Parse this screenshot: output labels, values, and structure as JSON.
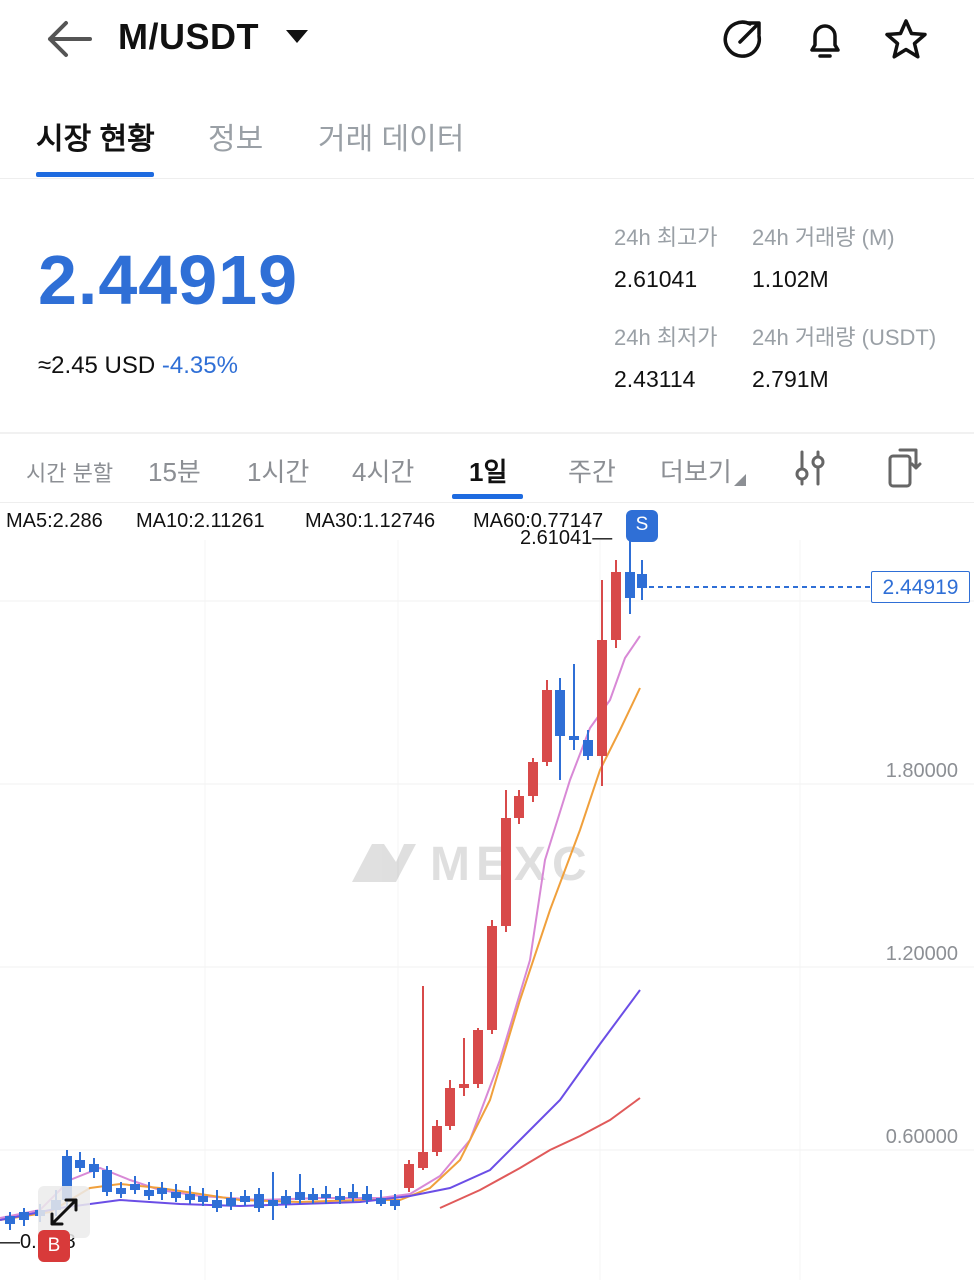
{
  "header": {
    "pair": "M/USDT",
    "icons": [
      "back-arrow-icon",
      "caret-down-icon",
      "share-icon",
      "bell-icon",
      "star-icon"
    ]
  },
  "tabs": [
    {
      "label": "시장 현황",
      "active": true
    },
    {
      "label": "정보",
      "active": false
    },
    {
      "label": "거래 데이터",
      "active": false
    }
  ],
  "ticker": {
    "price": "2.44919",
    "usd_approx": "≈2.45 USD",
    "change": "-4.35%",
    "high_label": "24h 최고가",
    "high_value": "2.61041",
    "vol_m_label": "24h 거래량 (M)",
    "vol_m_value": "1.102M",
    "low_label": "24h 최저가",
    "low_value": "2.43114",
    "vol_usdt_label": "24h 거래량 (USDT)",
    "vol_usdt_value": "2.791M"
  },
  "timeframes": {
    "items": [
      "시간 분할",
      "15분",
      "1시간",
      "4시간",
      "1일",
      "주간",
      "더보기"
    ],
    "active": "1일",
    "icons": [
      "indicator-settings-icon",
      "screen-rotate-icon"
    ]
  },
  "ma_legend": [
    {
      "label": "MA5:2.286",
      "color": "#d889d6"
    },
    {
      "label": "MA10:2.11261",
      "color": "#f0a03c"
    },
    {
      "label": "MA30:1.12746",
      "color": "#6b4ee6"
    },
    {
      "label": "MA60:0.77147",
      "color": "#e05a5a"
    }
  ],
  "chart_data": {
    "type": "candlestick",
    "y_axis_labels": [
      "1.80000",
      "1.20000",
      "0.60000"
    ],
    "current_price": "2.44919",
    "high_marker": "2.61041",
    "low_marker_visible": "0.  318",
    "badges": {
      "sell": "S",
      "buy": "B"
    },
    "watermark": "MEXC",
    "colors": {
      "up": "#d84a4a",
      "down": "#2f6fd6"
    }
  }
}
